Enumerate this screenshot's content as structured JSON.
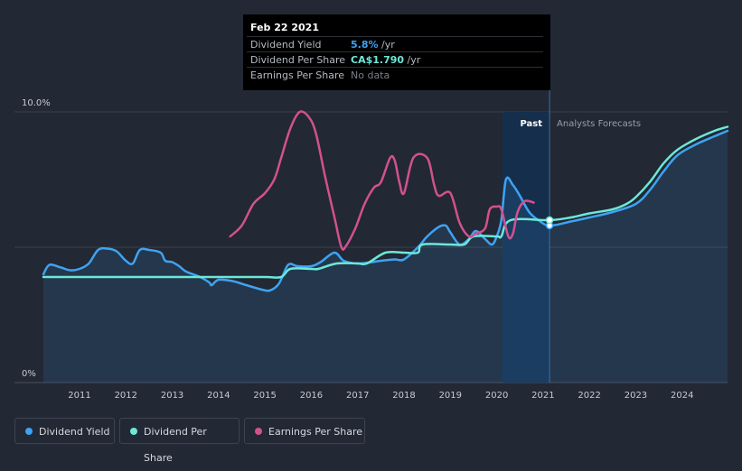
{
  "tooltip": {
    "date": "Feb 22 2021",
    "rows": [
      {
        "label": "Dividend Yield",
        "value": "5.8%",
        "unit": " /yr"
      },
      {
        "label": "Dividend Per Share",
        "value": "CA$1.790",
        "unit": " /yr"
      },
      {
        "label": "Earnings Per Share",
        "value": "No data",
        "unit": ""
      }
    ]
  },
  "labels": {
    "past": "Past",
    "forecast": "Analysts Forecasts"
  },
  "legend": [
    {
      "label": "Dividend Yield",
      "color": "#3ea3f2"
    },
    {
      "label": "Dividend Per Share",
      "color": "#6de8d8"
    },
    {
      "label": "Earnings Per Share",
      "color": "#d2518f"
    }
  ],
  "chart_data": {
    "type": "line",
    "x_ticks": [
      "2011",
      "2012",
      "2013",
      "2014",
      "2015",
      "2016",
      "2017",
      "2018",
      "2019",
      "2020",
      "2021",
      "2022",
      "2023",
      "2024"
    ],
    "y_ticks": [
      "10.0%",
      "0%"
    ],
    "xlim": [
      2010.22,
      2024.98
    ],
    "ylim": [
      0,
      10
    ],
    "today": 2021.14,
    "past_shade_start": 2020.15,
    "grid": "horizontal",
    "legend_position": "bottom-left",
    "series": [
      {
        "name": "Dividend Yield",
        "color": "#3ea3f2",
        "points": [
          [
            2010.22,
            4.0
          ],
          [
            2010.35,
            4.35
          ],
          [
            2010.6,
            4.25
          ],
          [
            2010.8,
            4.15
          ],
          [
            2011.0,
            4.2
          ],
          [
            2011.2,
            4.4
          ],
          [
            2011.4,
            4.9
          ],
          [
            2011.6,
            4.95
          ],
          [
            2011.8,
            4.85
          ],
          [
            2012.0,
            4.5
          ],
          [
            2012.15,
            4.4
          ],
          [
            2012.3,
            4.9
          ],
          [
            2012.5,
            4.9
          ],
          [
            2012.75,
            4.8
          ],
          [
            2012.85,
            4.5
          ],
          [
            2013.0,
            4.45
          ],
          [
            2013.15,
            4.3
          ],
          [
            2013.3,
            4.1
          ],
          [
            2013.6,
            3.9
          ],
          [
            2013.8,
            3.7
          ],
          [
            2013.85,
            3.6
          ],
          [
            2014.0,
            3.8
          ],
          [
            2014.3,
            3.75
          ],
          [
            2014.6,
            3.6
          ],
          [
            2014.9,
            3.45
          ],
          [
            2015.1,
            3.4
          ],
          [
            2015.3,
            3.65
          ],
          [
            2015.5,
            4.35
          ],
          [
            2015.7,
            4.3
          ],
          [
            2016.0,
            4.3
          ],
          [
            2016.2,
            4.45
          ],
          [
            2016.5,
            4.8
          ],
          [
            2016.7,
            4.5
          ],
          [
            2017.0,
            4.4
          ],
          [
            2017.3,
            4.45
          ],
          [
            2017.5,
            4.5
          ],
          [
            2017.8,
            4.55
          ],
          [
            2018.0,
            4.55
          ],
          [
            2018.3,
            5.0
          ],
          [
            2018.5,
            5.4
          ],
          [
            2018.75,
            5.75
          ],
          [
            2018.9,
            5.8
          ],
          [
            2019.0,
            5.55
          ],
          [
            2019.2,
            5.1
          ],
          [
            2019.4,
            5.3
          ],
          [
            2019.55,
            5.6
          ],
          [
            2019.75,
            5.3
          ],
          [
            2019.9,
            5.1
          ],
          [
            2020.0,
            5.4
          ],
          [
            2020.1,
            6.0
          ],
          [
            2020.2,
            7.5
          ],
          [
            2020.35,
            7.3
          ],
          [
            2020.5,
            6.9
          ],
          [
            2020.7,
            6.3
          ],
          [
            2020.9,
            6.0
          ],
          [
            2021.14,
            5.8
          ],
          [
            2021.6,
            5.95
          ],
          [
            2022.0,
            6.1
          ],
          [
            2022.5,
            6.3
          ],
          [
            2023.0,
            6.6
          ],
          [
            2023.3,
            7.1
          ],
          [
            2023.6,
            7.8
          ],
          [
            2023.9,
            8.4
          ],
          [
            2024.3,
            8.8
          ],
          [
            2024.7,
            9.1
          ],
          [
            2024.98,
            9.3
          ]
        ]
      },
      {
        "name": "Dividend Per Share",
        "color": "#6de8d8",
        "points": [
          [
            2010.22,
            3.9
          ],
          [
            2011.0,
            3.9
          ],
          [
            2012.0,
            3.9
          ],
          [
            2013.0,
            3.9
          ],
          [
            2014.0,
            3.9
          ],
          [
            2015.0,
            3.9
          ],
          [
            2015.35,
            3.9
          ],
          [
            2015.55,
            4.2
          ],
          [
            2016.0,
            4.2
          ],
          [
            2016.15,
            4.2
          ],
          [
            2016.55,
            4.4
          ],
          [
            2017.0,
            4.4
          ],
          [
            2017.2,
            4.4
          ],
          [
            2017.6,
            4.8
          ],
          [
            2018.0,
            4.8
          ],
          [
            2018.3,
            4.8
          ],
          [
            2018.4,
            5.1
          ],
          [
            2019.0,
            5.1
          ],
          [
            2019.3,
            5.1
          ],
          [
            2019.5,
            5.4
          ],
          [
            2020.0,
            5.4
          ],
          [
            2020.1,
            5.4
          ],
          [
            2020.3,
            6.0
          ],
          [
            2021.14,
            6.0
          ],
          [
            2021.6,
            6.1
          ],
          [
            2022.0,
            6.25
          ],
          [
            2022.5,
            6.4
          ],
          [
            2022.8,
            6.6
          ],
          [
            2023.0,
            6.85
          ],
          [
            2023.3,
            7.4
          ],
          [
            2023.6,
            8.1
          ],
          [
            2023.9,
            8.6
          ],
          [
            2024.3,
            9.0
          ],
          [
            2024.7,
            9.3
          ],
          [
            2024.98,
            9.45
          ]
        ]
      },
      {
        "name": "Earnings Per Share",
        "color": "#d2518f",
        "points": [
          [
            2014.25,
            5.4
          ],
          [
            2014.5,
            5.8
          ],
          [
            2014.75,
            6.6
          ],
          [
            2015.0,
            7.0
          ],
          [
            2015.2,
            7.5
          ],
          [
            2015.35,
            8.3
          ],
          [
            2015.55,
            9.4
          ],
          [
            2015.75,
            10.0
          ],
          [
            2015.95,
            9.8
          ],
          [
            2016.1,
            9.2
          ],
          [
            2016.3,
            7.6
          ],
          [
            2016.5,
            6.1
          ],
          [
            2016.65,
            5.0
          ],
          [
            2016.75,
            5.05
          ],
          [
            2016.95,
            5.7
          ],
          [
            2017.15,
            6.6
          ],
          [
            2017.35,
            7.2
          ],
          [
            2017.5,
            7.4
          ],
          [
            2017.7,
            8.3
          ],
          [
            2017.8,
            8.2
          ],
          [
            2017.9,
            7.4
          ],
          [
            2018.0,
            7.0
          ],
          [
            2018.2,
            8.3
          ],
          [
            2018.5,
            8.3
          ],
          [
            2018.65,
            7.3
          ],
          [
            2018.75,
            6.9
          ],
          [
            2019.0,
            7.0
          ],
          [
            2019.2,
            5.9
          ],
          [
            2019.4,
            5.4
          ],
          [
            2019.55,
            5.5
          ],
          [
            2019.75,
            5.7
          ],
          [
            2019.85,
            6.4
          ],
          [
            2020.0,
            6.5
          ],
          [
            2020.1,
            6.4
          ],
          [
            2020.25,
            5.4
          ],
          [
            2020.35,
            5.5
          ],
          [
            2020.45,
            6.3
          ],
          [
            2020.6,
            6.7
          ],
          [
            2020.8,
            6.65
          ]
        ]
      }
    ]
  }
}
